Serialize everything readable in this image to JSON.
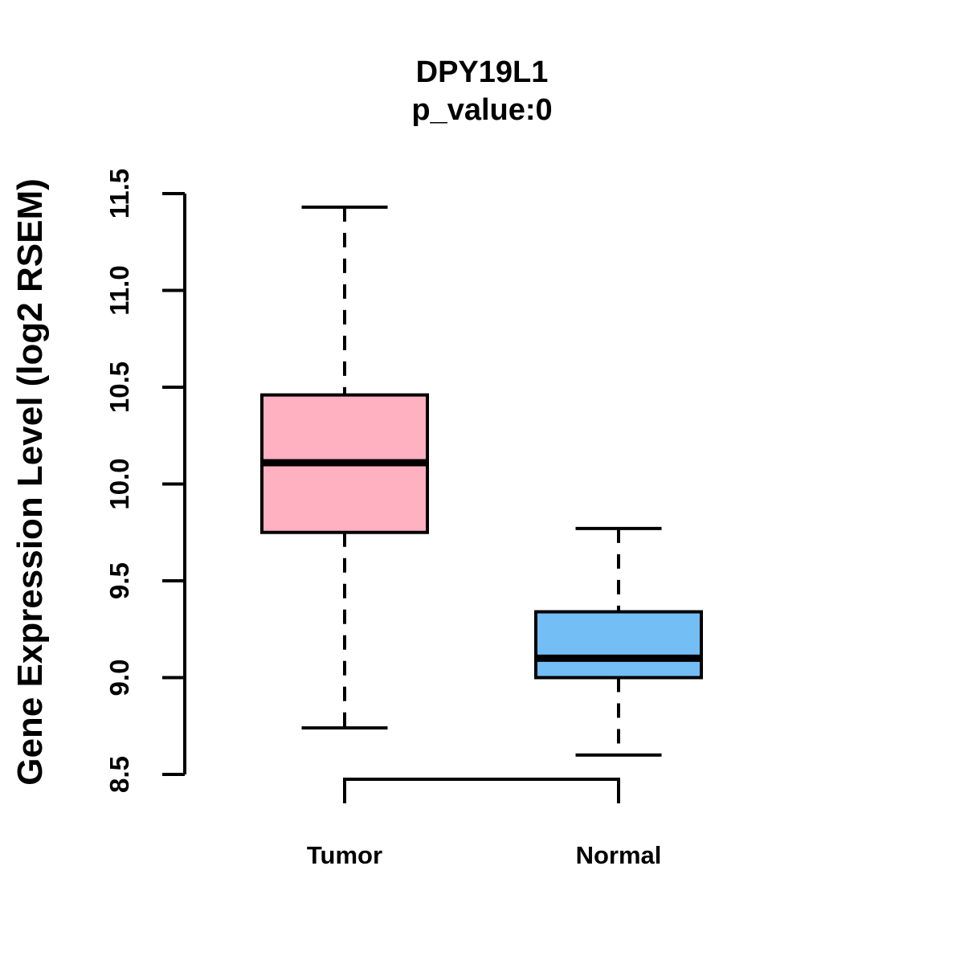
{
  "chart_data": {
    "type": "boxplot",
    "title": "DPY19L1",
    "subtitle": "p_value:0",
    "ylabel": "Gene Expression Level (log2 RSEM)",
    "xlabel": "",
    "categories": [
      "Tumor",
      "Normal"
    ],
    "series": [
      {
        "name": "Tumor",
        "color": "#FFB0C1",
        "whisker_low": 8.74,
        "q1": 9.75,
        "median": 10.11,
        "q3": 10.46,
        "whisker_high": 11.43
      },
      {
        "name": "Normal",
        "color": "#73BEF5",
        "whisker_low": 8.6,
        "q1": 9.0,
        "median": 9.1,
        "q3": 9.34,
        "whisker_high": 9.77
      }
    ],
    "ylim": [
      8.5,
      11.5
    ],
    "yticks": [
      8.5,
      9.0,
      9.5,
      10.0,
      10.5,
      11.0,
      11.5
    ],
    "grid": false,
    "legend": "none",
    "axis_color": "#000000",
    "median_color": "#000000",
    "box_border_color": "#000000"
  }
}
